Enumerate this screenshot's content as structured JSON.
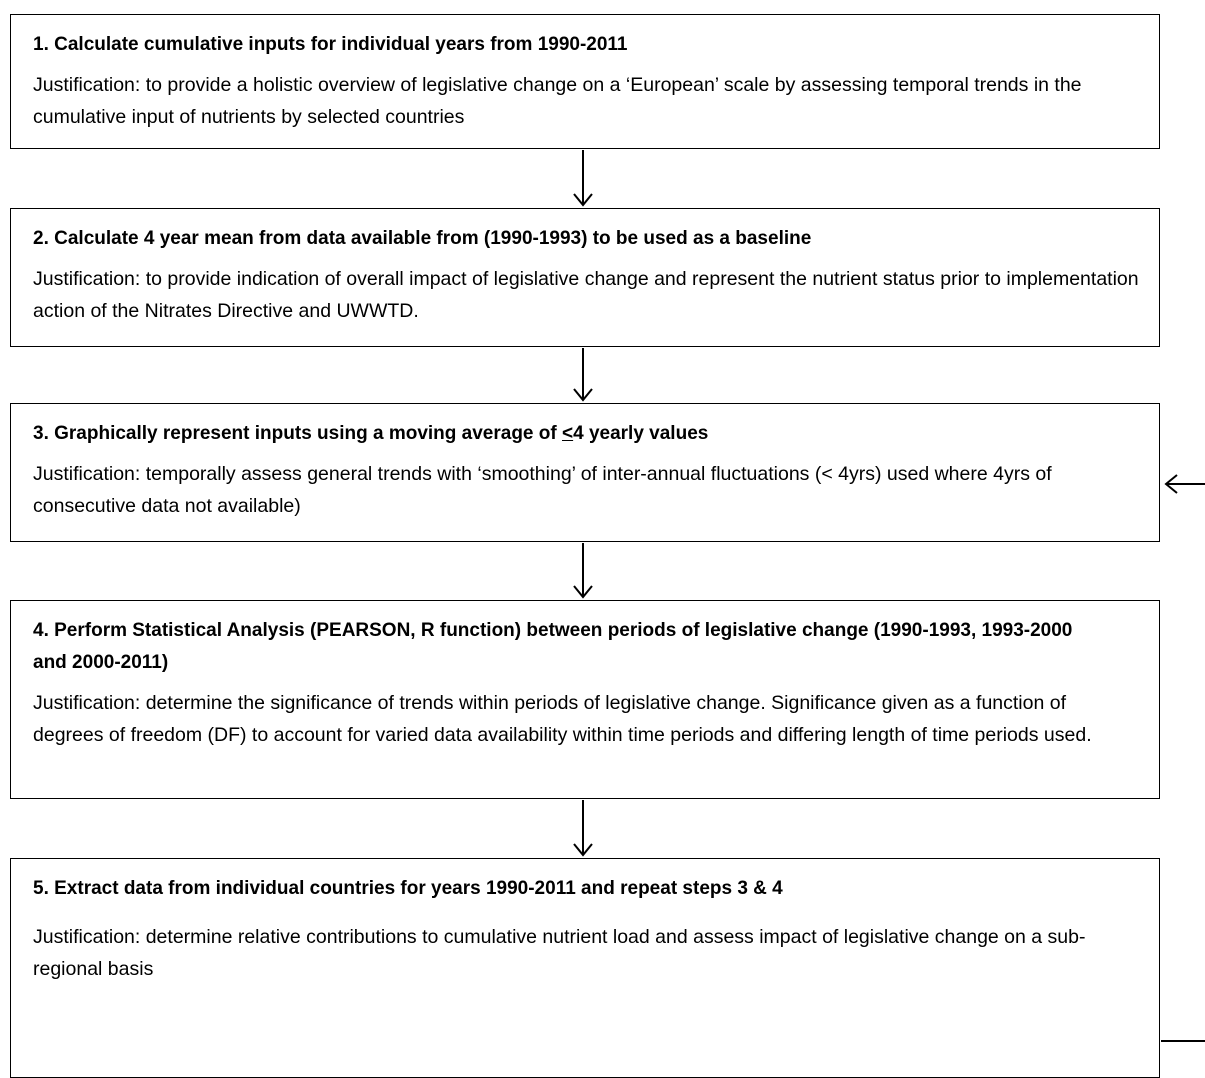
{
  "steps": [
    {
      "title": "1. Calculate cumulative inputs for individual years from 1990-2011",
      "justification": "Justification: to provide a holistic overview of legislative change on a ‘European’ scale by assessing temporal trends in the cumulative input of nutrients by selected countries"
    },
    {
      "title": "2. Calculate 4 year mean from data available from (1990-1993) to be used as a baseline",
      "justification": "Justification: to provide indication of overall impact of legislative change and represent the nutrient status prior to implementation action of the Nitrates Directive and UWWTD."
    },
    {
      "title_parts": [
        "3. Graphically represent inputs using a moving average of ",
        "<",
        "4 yearly values"
      ],
      "justification": "Justification: temporally assess general trends with ‘smoothing’ of inter-annual fluctuations (< 4yrs) used where 4yrs of consecutive data not available)"
    },
    {
      "title": "4. Perform Statistical Analysis (PEARSON, R function) between periods of legislative change (1990-1993, 1993-2000 and 2000-2011)",
      "justification": "Justification: determine the significance of trends within periods of legislative change. Significance given as a function of degrees of freedom (DF) to account for varied data availability within time periods and differing length of time periods used."
    },
    {
      "title": "5. Extract data from individual countries for years 1990-2011 and repeat steps 3 & 4",
      "justification": "Justification: determine relative contributions to cumulative nutrient load and assess impact of legislative change on a sub-regional basis"
    }
  ]
}
